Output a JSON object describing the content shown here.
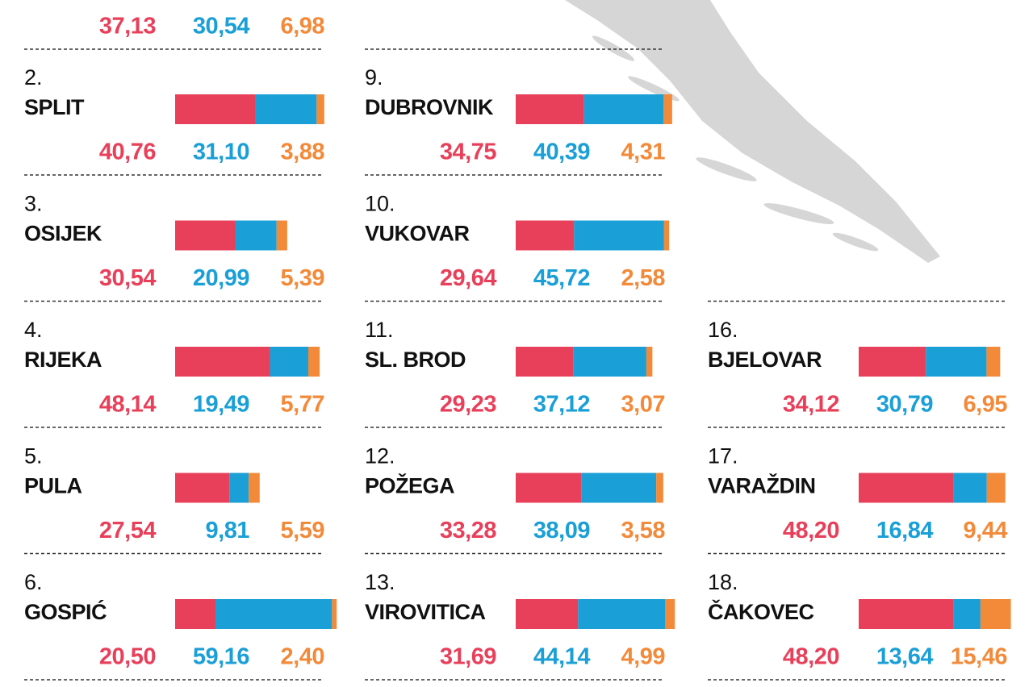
{
  "colors": [
    "#e8405a",
    "#1a9fd6",
    "#f28a3a"
  ],
  "columns": [
    {
      "cities": [
        {
          "values": [
            37.13,
            30.54,
            6.98
          ],
          "value_labels": [
            "37,13",
            "30,54",
            "6,98"
          ]
        },
        {
          "rank": "2.",
          "name": "SPLIT",
          "values": [
            40.76,
            31.1,
            3.88
          ],
          "value_labels": [
            "40,76",
            "31,10",
            "3,88"
          ]
        },
        {
          "rank": "3.",
          "name": "OSIJEK",
          "values": [
            30.54,
            20.99,
            5.39
          ],
          "value_labels": [
            "30,54",
            "20,99",
            "5,39"
          ]
        },
        {
          "rank": "4.",
          "name": "RIJEKA",
          "values": [
            48.14,
            19.49,
            5.77
          ],
          "value_labels": [
            "48,14",
            "19,49",
            "5,77"
          ]
        },
        {
          "rank": "5.",
          "name": "PULA",
          "values": [
            27.54,
            9.81,
            5.59
          ],
          "value_labels": [
            "27,54",
            "9,81",
            "5,59"
          ]
        },
        {
          "rank": "6.",
          "name": "GOSPIĆ",
          "values": [
            20.5,
            59.16,
            2.4
          ],
          "value_labels": [
            "20,50",
            "59,16",
            "2,40"
          ]
        }
      ]
    },
    {
      "cities": [
        {
          "rank": "9.",
          "name": "DUBROVNIK",
          "values": [
            34.75,
            40.39,
            4.31
          ],
          "value_labels": [
            "34,75",
            "40,39",
            "4,31"
          ]
        },
        {
          "rank": "10.",
          "name": "VUKOVAR",
          "values": [
            29.64,
            45.72,
            2.58
          ],
          "value_labels": [
            "29,64",
            "45,72",
            "2,58"
          ]
        },
        {
          "rank": "11.",
          "name": "SL. BROD",
          "values": [
            29.23,
            37.12,
            3.07
          ],
          "value_labels": [
            "29,23",
            "37,12",
            "3,07"
          ]
        },
        {
          "rank": "12.",
          "name": "POŽEGA",
          "values": [
            33.28,
            38.09,
            3.58
          ],
          "value_labels": [
            "33,28",
            "38,09",
            "3,58"
          ]
        },
        {
          "rank": "13.",
          "name": "VIROVITICA",
          "values": [
            31.69,
            44.14,
            4.99
          ],
          "value_labels": [
            "31,69",
            "44,14",
            "4,99"
          ]
        }
      ]
    },
    {
      "cities": [
        {
          "rank": "16.",
          "name": "BJELOVAR",
          "values": [
            34.12,
            30.79,
            6.95
          ],
          "value_labels": [
            "34,12",
            "30,79",
            "6,95"
          ]
        },
        {
          "rank": "17.",
          "name": "VARAŽDIN",
          "values": [
            48.2,
            16.84,
            9.44
          ],
          "value_labels": [
            "48,20",
            "16,84",
            "9,44"
          ]
        },
        {
          "rank": "18.",
          "name": "ČAKOVEC",
          "values": [
            48.2,
            13.64,
            15.46
          ],
          "value_labels": [
            "48,20",
            "13,64",
            "15,46"
          ]
        }
      ]
    }
  ]
}
